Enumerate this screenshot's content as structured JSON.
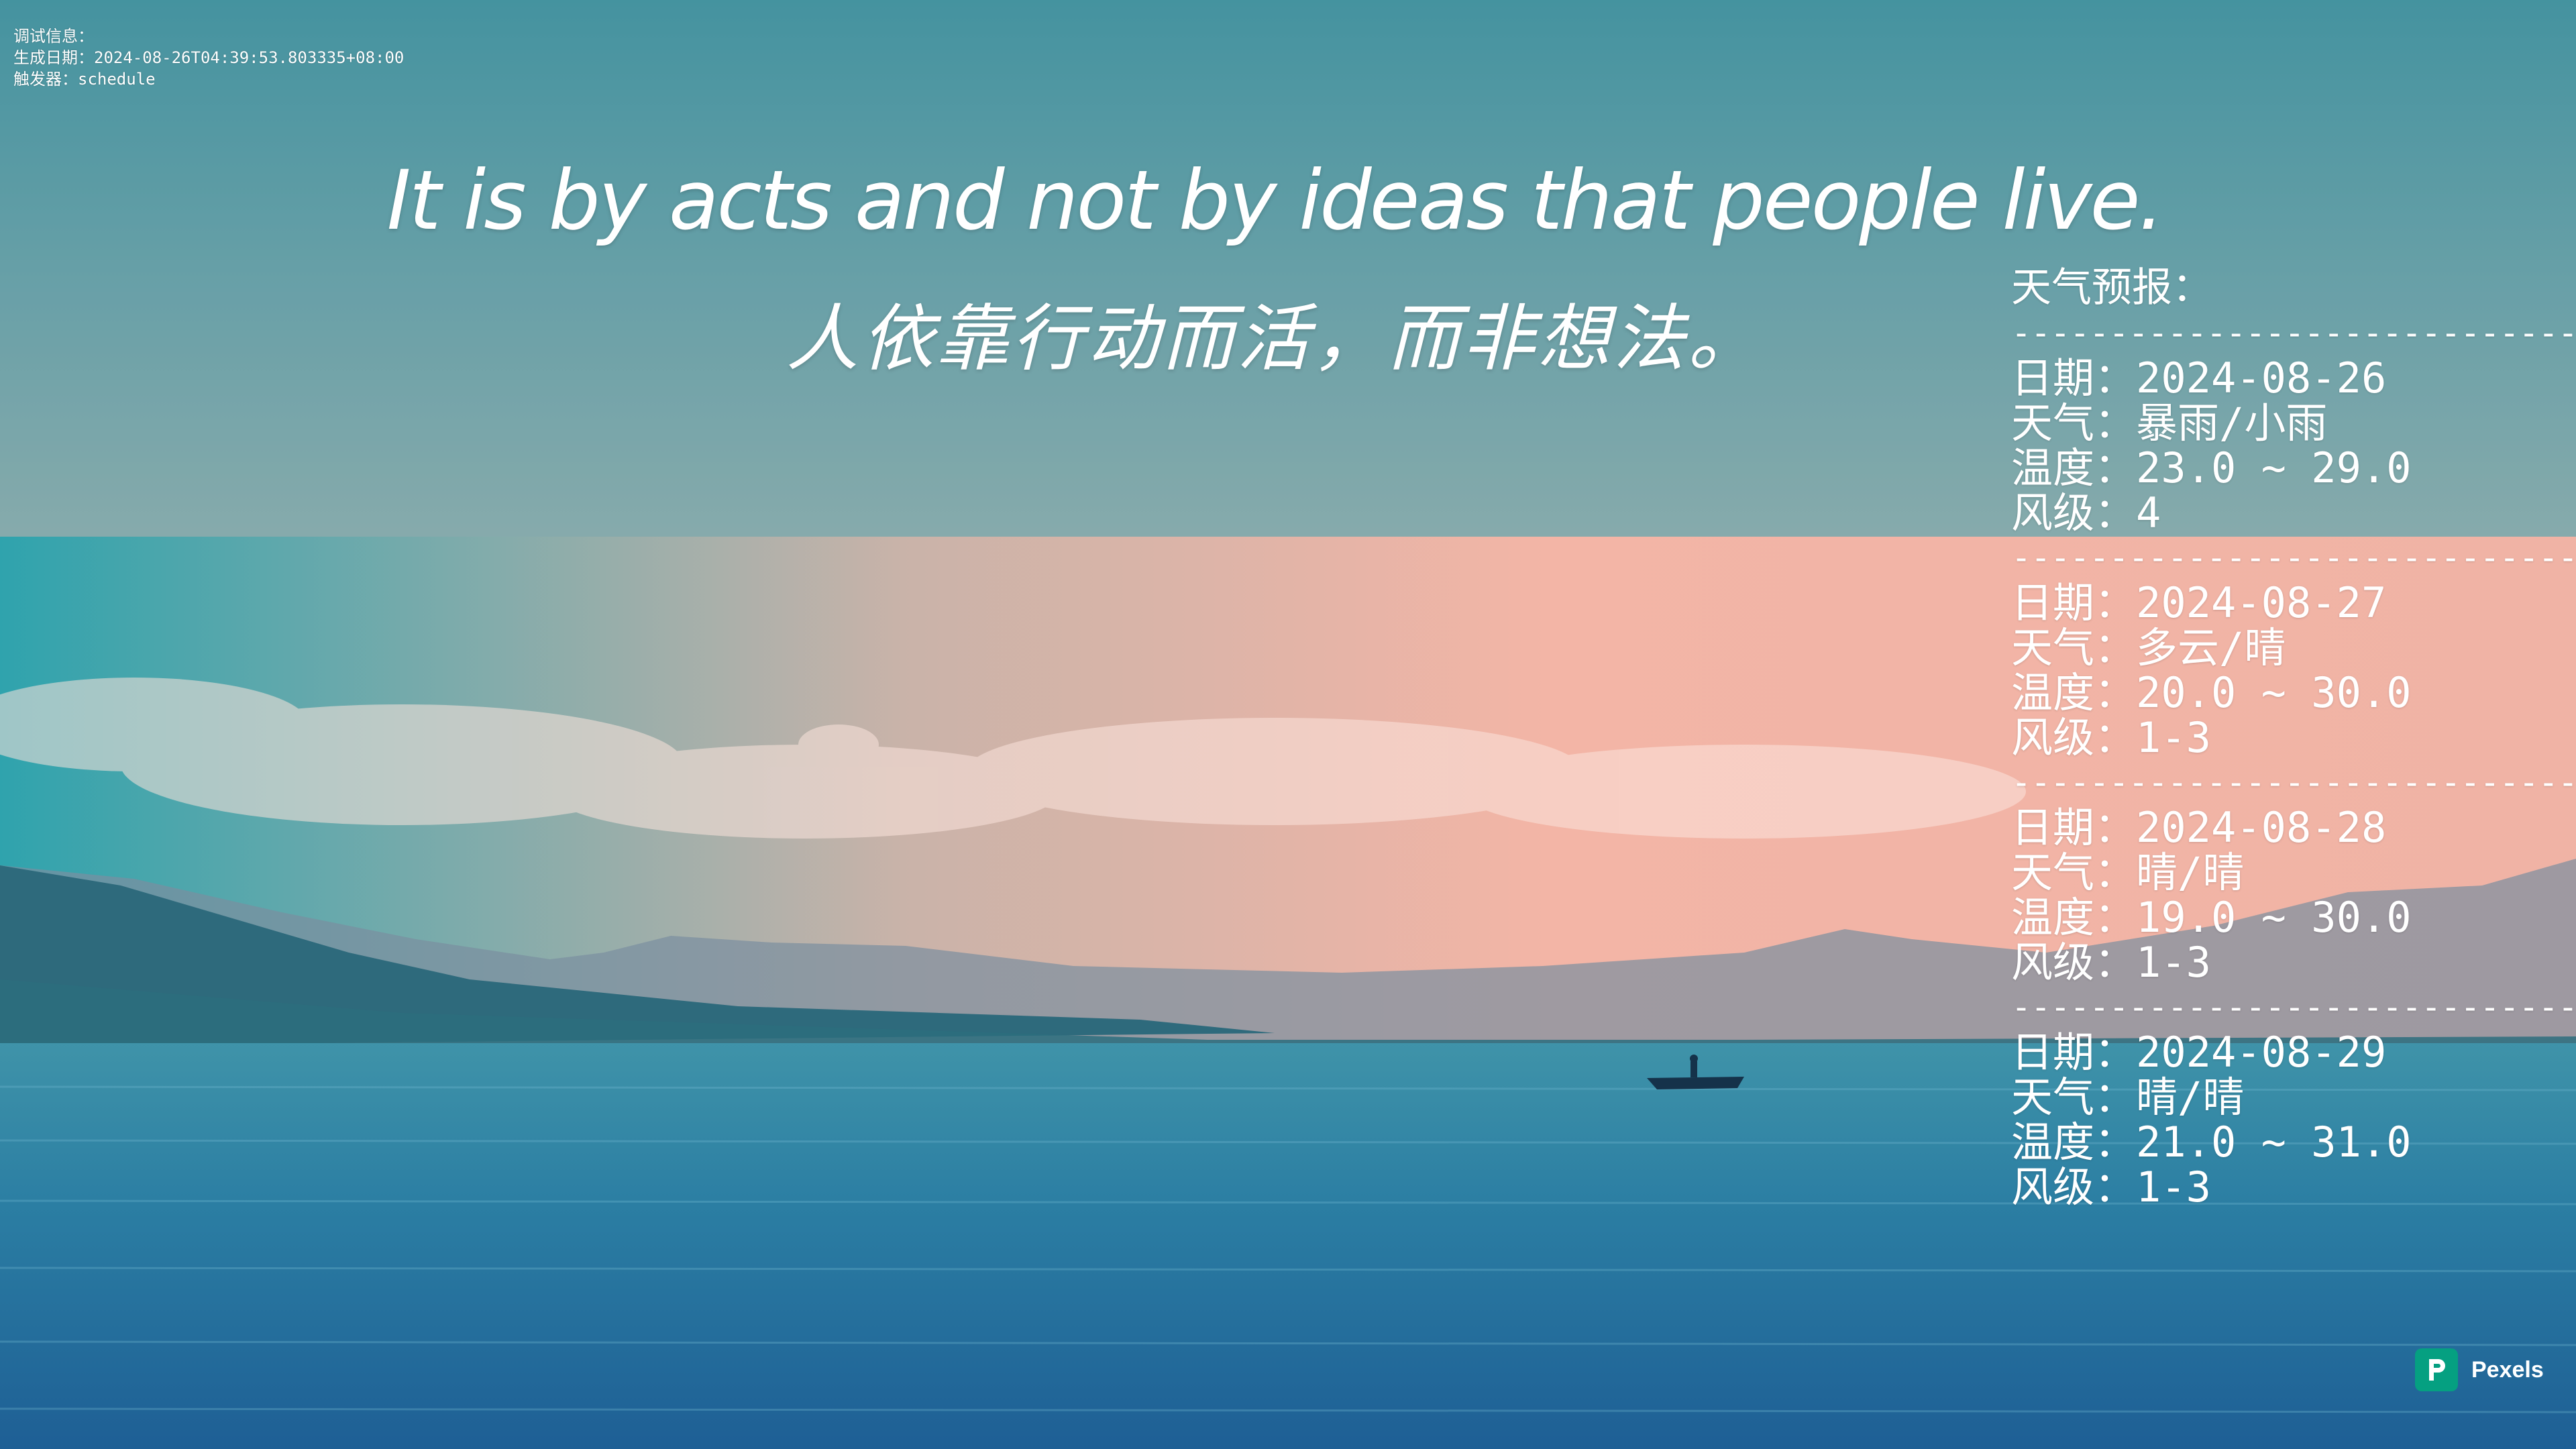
{
  "debug": {
    "label": "调试信息：",
    "generated": "生成日期：2024-08-26T04:39:53.803335+08:00",
    "trigger": "触发器：schedule"
  },
  "quote": {
    "en": "It is by acts and not by ideas that people live.",
    "zh": "人依靠行动而活，而非想法。"
  },
  "weather": {
    "title": "天气预报：",
    "divider": "------------------------------",
    "days": [
      {
        "date": "日期：2024-08-26",
        "weather": "天气：暴雨/小雨",
        "temp": "温度：23.0 ~ 29.0",
        "wind": "风级：4"
      },
      {
        "date": "日期：2024-08-27",
        "weather": "天气：多云/晴",
        "temp": "温度：20.0 ~ 30.0",
        "wind": "风级：1-3"
      },
      {
        "date": "日期：2024-08-28",
        "weather": "天气：晴/晴",
        "temp": "温度：19.0 ~ 30.0",
        "wind": "风级：1-3"
      },
      {
        "date": "日期：2024-08-29",
        "weather": "天气：晴/晴",
        "temp": "温度：21.0 ~ 31.0",
        "wind": "风级：1-3"
      }
    ]
  },
  "watermark": {
    "label": "Pexels",
    "icon": "pexels-logo-icon"
  },
  "colors": {
    "text": "#ffffff",
    "pexels_green": "#05a081"
  }
}
